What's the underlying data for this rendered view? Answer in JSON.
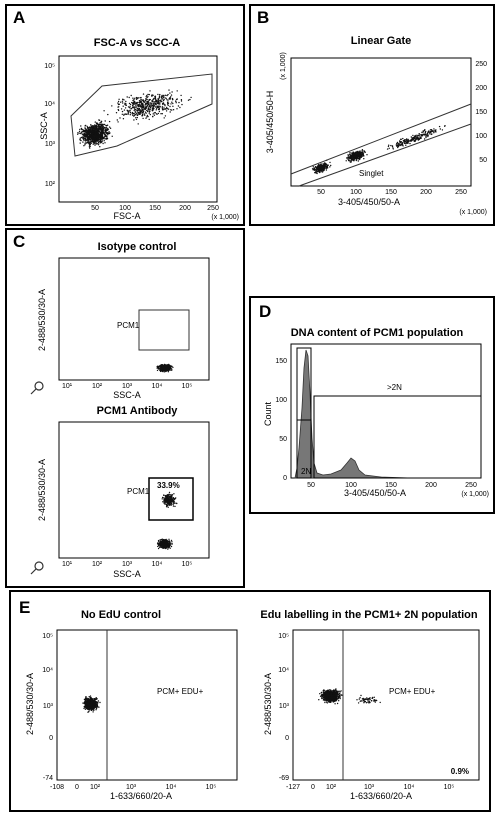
{
  "panels": {
    "A": {
      "letter": "A",
      "title": "FSC-A vs SCC-A",
      "xlabel": "FSC-A",
      "ylabel": "SSC-A",
      "xticks": [
        "50",
        "100",
        "150",
        "200",
        "250"
      ],
      "yticks": [
        "10²",
        "10³",
        "10⁴",
        "10⁵"
      ],
      "scale": "(x 1,000)"
    },
    "B": {
      "letter": "B",
      "title": "Linear Gate",
      "xlabel": "3-405/450/50-A",
      "ylabel": "3-405/450/50-H",
      "yscale": "(x 1,000)",
      "xticks": [
        "50",
        "100",
        "150",
        "200",
        "250"
      ],
      "yticks": [
        "50",
        "100",
        "150",
        "200",
        "250"
      ],
      "scale": "(x 1,000)",
      "gate_label": "Singlet"
    },
    "C": {
      "letter": "C",
      "top": {
        "title": "Isotype control",
        "ylabel": "2-488/530/30-A",
        "xlabel": "SSC-A",
        "gate_label": "PCM1",
        "xticks": [
          "10¹",
          "10²",
          "10³",
          "10⁴",
          "10⁵"
        ]
      },
      "bottom": {
        "title": "PCM1 Antibody",
        "ylabel": "2-488/530/30-A",
        "xlabel": "SSC-A",
        "gate_label": "PCM1",
        "gate_percent": "33.9%",
        "xticks": [
          "10¹",
          "10²",
          "10³",
          "10⁴",
          "10⁵"
        ]
      }
    },
    "D": {
      "letter": "D",
      "title": "DNA content of PCM1 population",
      "ylabel": "Count",
      "xlabel": "3-405/450/50-A",
      "xticks": [
        "50",
        "100",
        "150",
        "200",
        "250"
      ],
      "yticks": [
        "0",
        "50",
        "100",
        "150"
      ],
      "scale": "(x 1,000)",
      "gate_2n": "2N",
      "gate_gt2n": ">2N"
    },
    "E": {
      "letter": "E",
      "left": {
        "title": "No EdU control",
        "ylabel": "2-488/530/30-A",
        "xlabel": "1-633/660/20-A",
        "gate_label": "PCM+ EDU+",
        "xticks": [
          "-108",
          "0",
          "10²",
          "10³",
          "10⁴",
          "10⁵"
        ],
        "yticks": [
          "-74",
          "0",
          "10³",
          "10⁴",
          "10⁵"
        ]
      },
      "right": {
        "title": "Edu labelling in the PCM1+ 2N population",
        "ylabel": "2-488/530/30-A",
        "xlabel": "1-633/660/20-A",
        "gate_label": "PCM+ EDU+",
        "gate_percent": "0.9%",
        "xticks": [
          "-127",
          "0",
          "10²",
          "10³",
          "10⁴",
          "10⁵"
        ],
        "yticks": [
          "-69",
          "0",
          "10³",
          "10⁴",
          "10⁵"
        ]
      }
    }
  }
}
